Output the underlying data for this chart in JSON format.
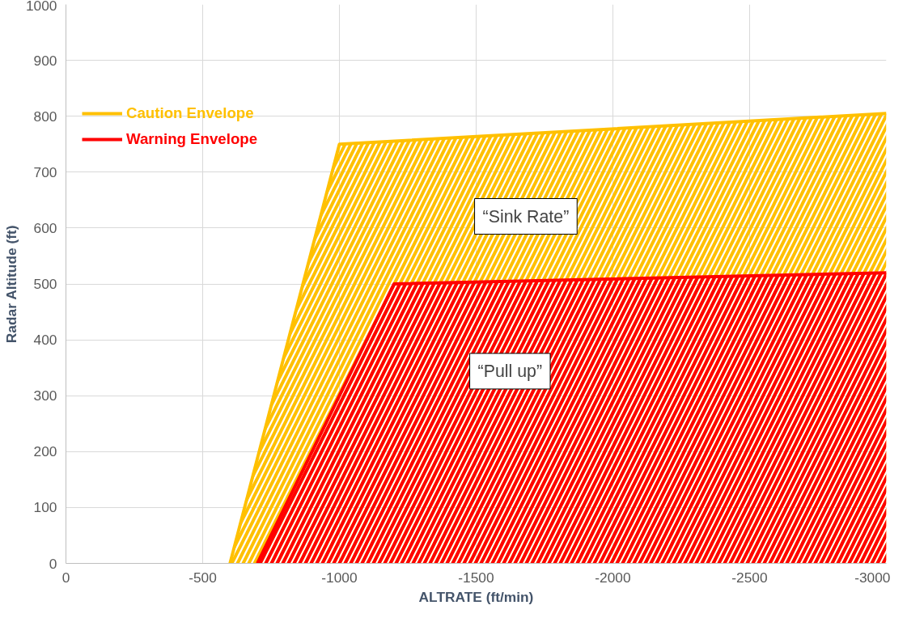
{
  "chart_data": {
    "type": "area",
    "xlabel": "ALTRATE (ft/min)",
    "ylabel": "Radar Altitude (ft)",
    "series": [
      {
        "name": "Caution Envelope",
        "color": "#ffc000",
        "x": [
          -600,
          -1000,
          -3000
        ],
        "values": [
          0,
          750,
          805
        ]
      },
      {
        "name": "Warning Envelope",
        "color": "#ff0000",
        "x": [
          -700,
          -1200,
          -3000
        ],
        "values": [
          0,
          500,
          520
        ]
      }
    ],
    "xlim": [
      0,
      -3000
    ],
    "xticks": [
      0,
      -500,
      -1000,
      -1500,
      -2000,
      -2500,
      -3000
    ],
    "ylim": [
      0,
      1000
    ],
    "yticks": [
      0,
      100,
      200,
      300,
      400,
      500,
      600,
      700,
      800,
      900,
      1000
    ],
    "grid": true,
    "legend": "top left",
    "annotations": [
      "“Sink Rate”",
      "“Pull up”"
    ]
  }
}
